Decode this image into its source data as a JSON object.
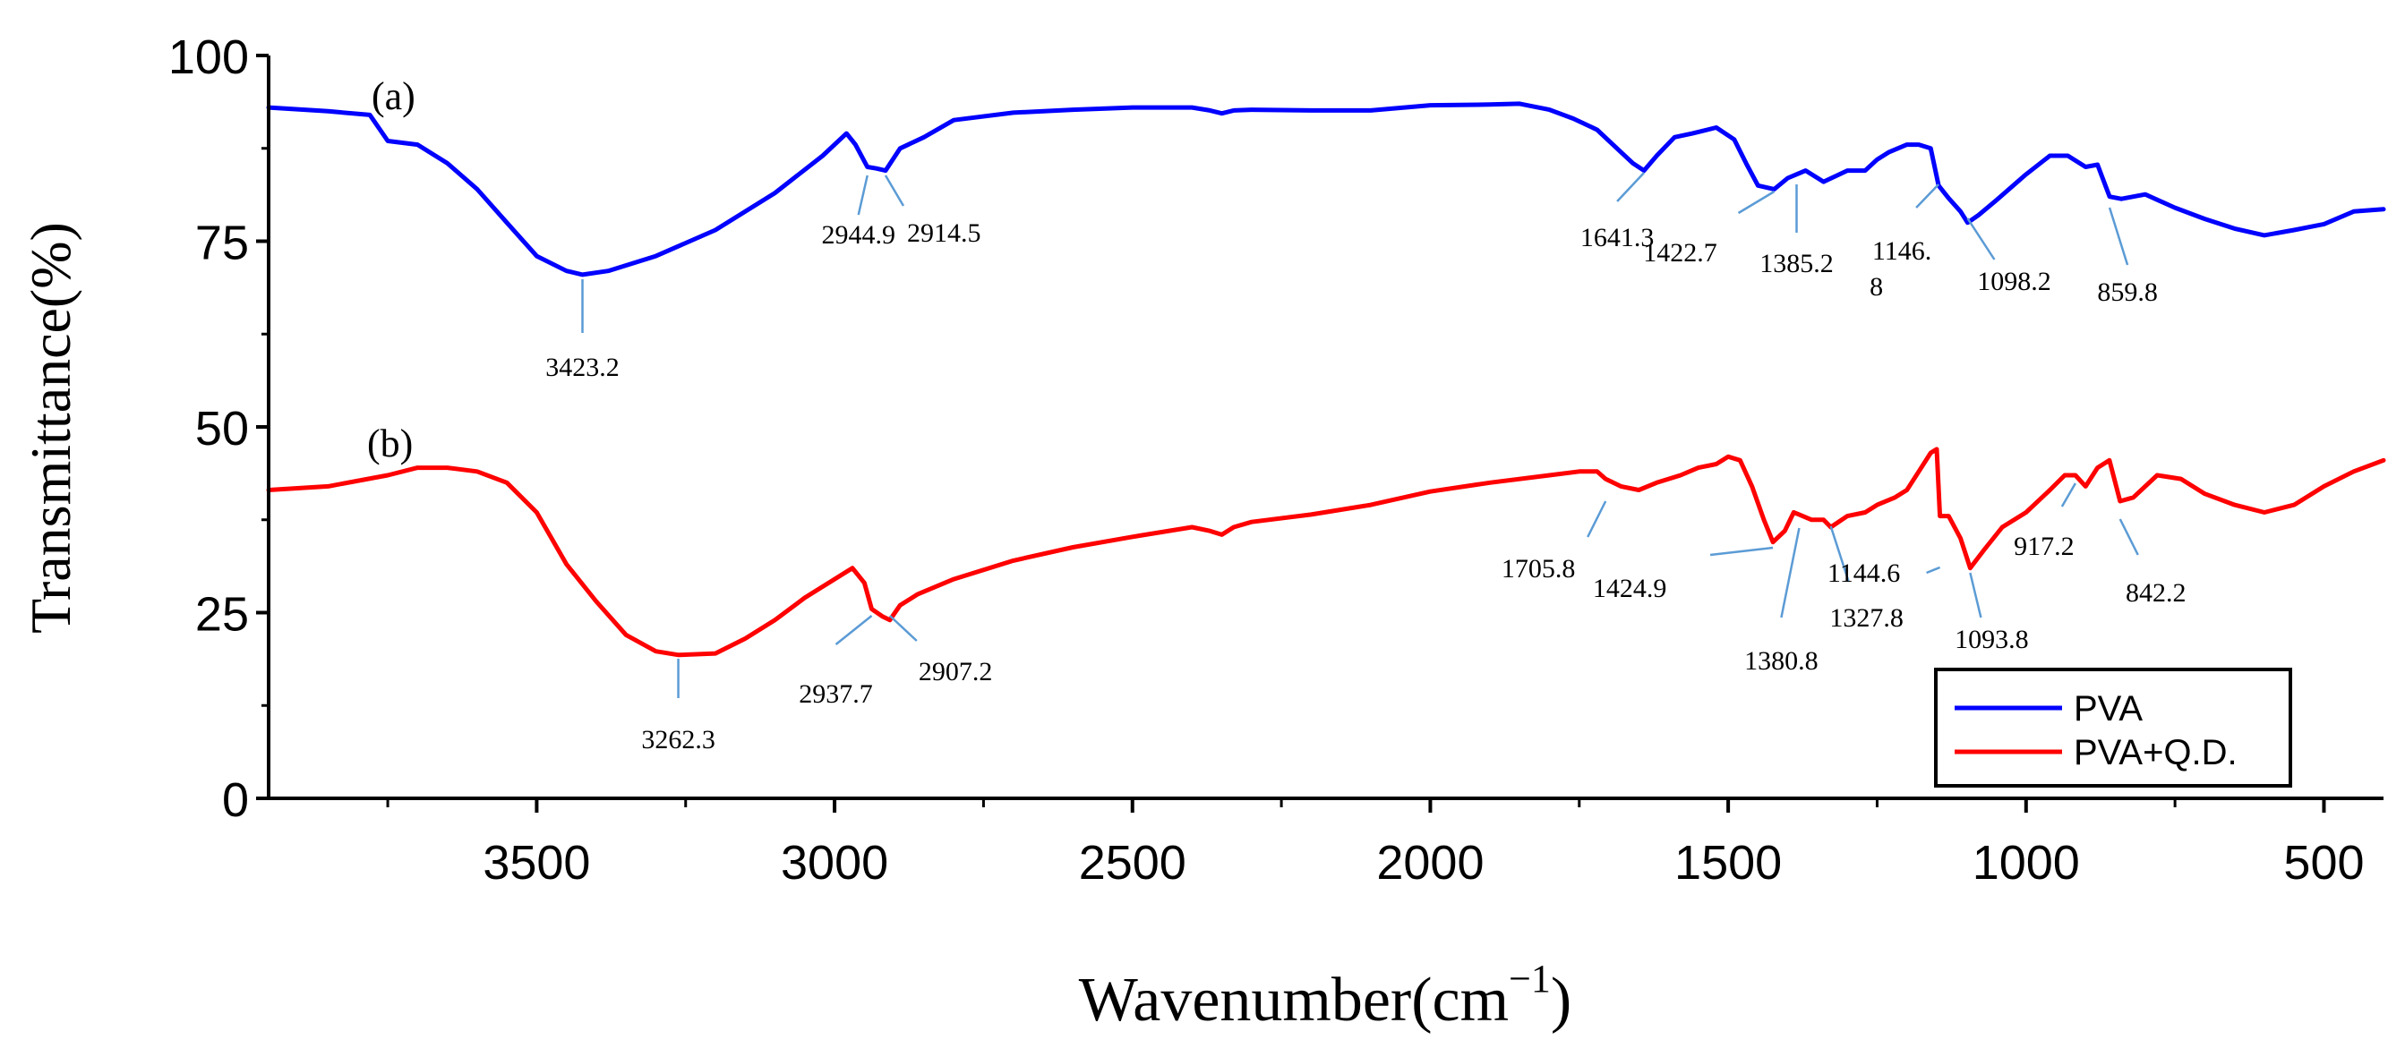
{
  "chart_data": {
    "type": "line",
    "title": "",
    "xlabel": "Wavenumber(cm",
    "xlabel_sup": "−1",
    "xlabel_close": ")",
    "ylabel": "Transmittance(%)",
    "xlim": [
      3950,
      400
    ],
    "ylim": [
      0,
      100
    ],
    "x_ticks": [
      3500,
      3000,
      2500,
      2000,
      1500,
      1000,
      500
    ],
    "x_tick_labels": [
      "3500",
      "3000",
      "2500",
      "2000",
      "1500",
      "1000",
      "500"
    ],
    "y_ticks": [
      0,
      25,
      50,
      75,
      100
    ],
    "y_tick_labels": [
      "0",
      "25",
      "50",
      "75",
      "100"
    ],
    "legend_position": "bottom-right",
    "series": [
      {
        "name": "PVA",
        "panel_label": "(a)",
        "color": "#0000ff",
        "x": [
          3950,
          3850,
          3780,
          3750,
          3700,
          3650,
          3600,
          3550,
          3500,
          3450,
          3423,
          3380,
          3300,
          3200,
          3100,
          3020,
          2980,
          2965,
          2944.9,
          2930,
          2914.5,
          2890,
          2850,
          2800,
          2700,
          2600,
          2500,
          2400,
          2370,
          2350,
          2330,
          2300,
          2200,
          2100,
          2000,
          1900,
          1850,
          1800,
          1760,
          1720,
          1680,
          1660,
          1641.3,
          1620,
          1590,
          1560,
          1520,
          1490,
          1470,
          1450,
          1422.7,
          1400,
          1385.2,
          1370,
          1340,
          1300,
          1270,
          1250,
          1230,
          1200,
          1180,
          1160,
          1146.8,
          1130,
          1110,
          1098.2,
          1080,
          1050,
          1000,
          960,
          930,
          900,
          880,
          859.8,
          840,
          800,
          750,
          700,
          650,
          600,
          550,
          500,
          450,
          400
        ],
        "y": [
          93,
          92.5,
          92,
          88.5,
          88,
          85.5,
          82,
          77.5,
          73,
          71,
          70.5,
          71,
          73,
          76.5,
          81.5,
          86.5,
          89.5,
          88,
          85,
          84.8,
          84.5,
          87.5,
          89,
          91.3,
          92.3,
          92.7,
          93,
          93,
          92.6,
          92.2,
          92.6,
          92.7,
          92.6,
          92.6,
          93.3,
          93.4,
          93.5,
          92.7,
          91.5,
          90,
          87,
          85.5,
          84.5,
          86.5,
          89,
          89.5,
          90.3,
          88.7,
          85.5,
          82.5,
          82,
          83.5,
          84,
          84.5,
          83,
          84.5,
          84.5,
          86,
          87,
          88,
          88,
          87.5,
          82.5,
          80.8,
          79,
          77.5,
          78.5,
          80.5,
          84,
          86.5,
          86.5,
          85,
          85.3,
          81,
          80.7,
          81.3,
          79.5,
          78,
          76.7,
          75.8,
          76.5,
          77.3,
          79,
          79.3
        ],
        "annotations": [
          {
            "label": "3423.2",
            "x": 3423.2
          },
          {
            "label": "2944.9",
            "x": 2944.9
          },
          {
            "label": "2914.5",
            "x": 2914.5
          },
          {
            "label": "1641.3",
            "x": 1641.3
          },
          {
            "label": "1422.7",
            "x": 1422.7
          },
          {
            "label": "1385.2",
            "x": 1385.2
          },
          {
            "label": "1146.",
            "label2": "8",
            "x": 1146.8
          },
          {
            "label": "1098.2",
            "x": 1098.2
          },
          {
            "label": "859.8",
            "x": 859.8
          }
        ]
      },
      {
        "name": "PVA+Q.D.",
        "panel_label": "(b)",
        "color": "#ff0000",
        "x": [
          3950,
          3850,
          3750,
          3700,
          3650,
          3600,
          3550,
          3500,
          3450,
          3400,
          3350,
          3300,
          3262,
          3200,
          3150,
          3100,
          3050,
          3000,
          2970,
          2950,
          2937.7,
          2920,
          2907.2,
          2890,
          2860,
          2800,
          2700,
          2600,
          2500,
          2400,
          2370,
          2350,
          2330,
          2300,
          2200,
          2100,
          2000,
          1900,
          1800,
          1750,
          1720,
          1705.8,
          1680,
          1650,
          1620,
          1580,
          1550,
          1520,
          1500,
          1480,
          1460,
          1440,
          1424.9,
          1405,
          1390,
          1380.8,
          1360,
          1340,
          1327.8,
          1300,
          1270,
          1250,
          1220,
          1200,
          1180,
          1160,
          1150,
          1144.6,
          1130,
          1110,
          1093.8,
          1070,
          1040,
          1000,
          960,
          935,
          917.2,
          900,
          880,
          860,
          842.2,
          820,
          780,
          740,
          700,
          650,
          600,
          550,
          500,
          450,
          400
        ],
        "y": [
          41.5,
          42,
          43.5,
          44.5,
          44.5,
          44,
          42.5,
          38.5,
          31.5,
          26.5,
          22,
          19.8,
          19.3,
          19.5,
          21.5,
          24,
          27,
          29.5,
          31,
          29,
          25.5,
          24.5,
          24,
          26,
          27.5,
          29.5,
          32,
          33.8,
          35.2,
          36.5,
          36,
          35.5,
          36.5,
          37.2,
          38.2,
          39.5,
          41.3,
          42.5,
          43.5,
          44,
          44,
          43,
          42,
          41.5,
          42.5,
          43.5,
          44.5,
          45,
          46,
          45.5,
          42,
          37.5,
          34.5,
          36,
          38.5,
          38.2,
          37.5,
          37.5,
          36.5,
          38,
          38.5,
          39.5,
          40.5,
          41.5,
          44,
          46.5,
          47,
          38,
          38,
          35,
          31,
          33.5,
          36.5,
          38.5,
          41.5,
          43.5,
          43.5,
          42,
          44.5,
          45.5,
          40,
          40.5,
          43.5,
          43,
          41,
          39.5,
          38.5,
          39.5,
          42,
          44,
          45.5
        ],
        "annotations": [
          {
            "label": "3262.3",
            "x": 3262.3
          },
          {
            "label": "2937.7",
            "x": 2937.7
          },
          {
            "label": "2907.2",
            "x": 2907.2
          },
          {
            "label": "1705.8",
            "x": 1705.8
          },
          {
            "label": "1424.9",
            "x": 1424.9
          },
          {
            "label": "1380.8",
            "x": 1380.8
          },
          {
            "label": "1327.8",
            "x": 1327.8
          },
          {
            "label": "1144.6",
            "x": 1144.6
          },
          {
            "label": "1093.8",
            "x": 1093.8
          },
          {
            "label": "917.2",
            "x": 917.2
          },
          {
            "label": "842.2",
            "x": 842.2
          }
        ]
      }
    ]
  }
}
